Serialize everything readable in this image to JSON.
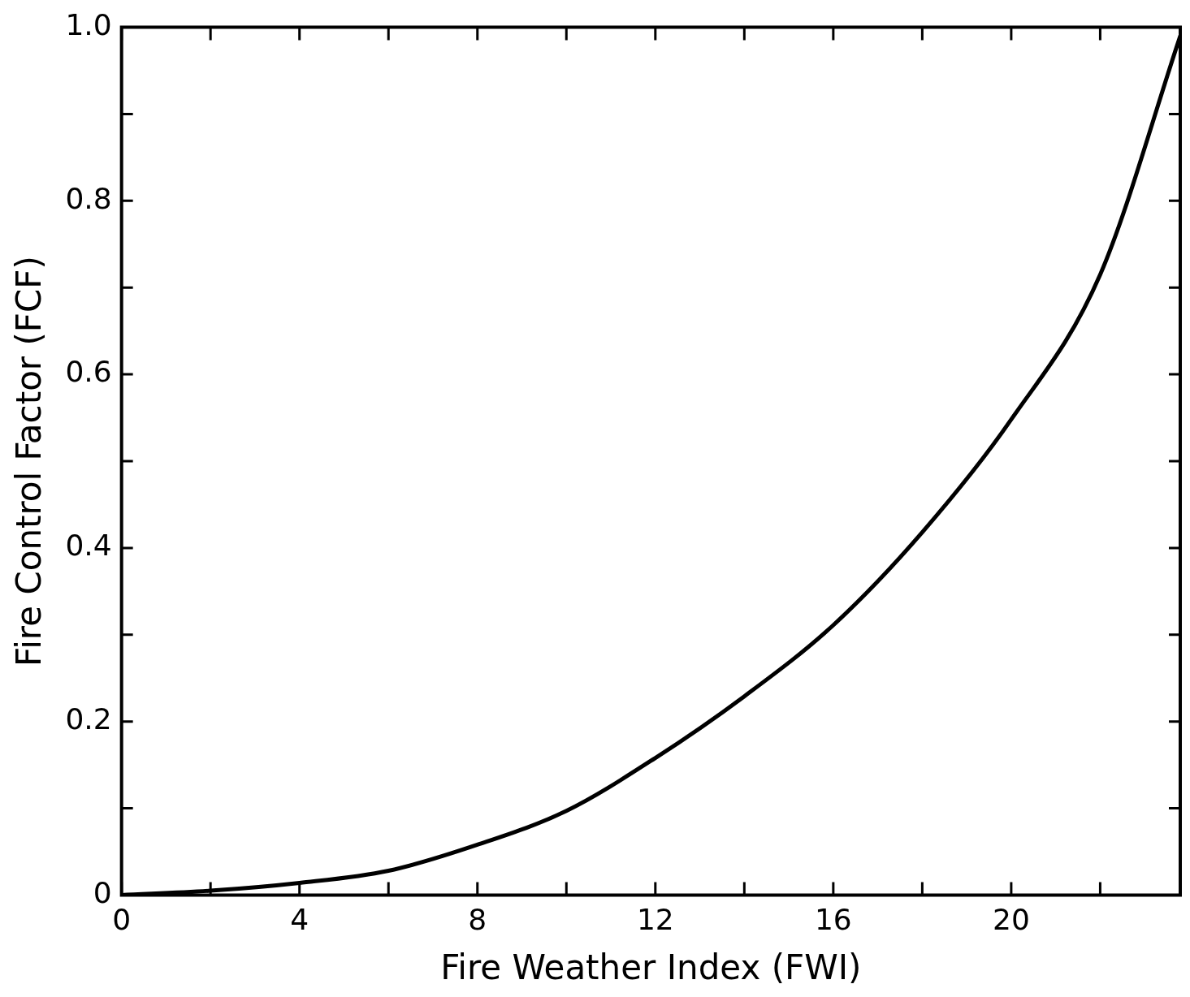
{
  "chart_data": {
    "type": "line",
    "xlabel": "Fire Weather Index (FWI)",
    "ylabel": "Fire Control Factor (FCF)",
    "x": [
      0,
      2,
      4,
      6,
      8,
      10,
      12,
      14,
      16,
      18,
      20,
      22,
      23.8
    ],
    "series": [
      {
        "color": "#000000",
        "values": [
          0,
          0.005,
          0.014,
          0.028,
          0.058,
          0.097,
          0.158,
          0.229,
          0.311,
          0.418,
          0.548,
          0.715,
          0.99
        ]
      }
    ],
    "xlim": [
      0,
      23.8
    ],
    "xticks": [
      0,
      {
        "value": 2,
        "label": null
      },
      4,
      {
        "value": 6,
        "label": null
      },
      8,
      {
        "value": 10,
        "label": null
      },
      12,
      {
        "value": 14,
        "label": null
      },
      16,
      {
        "value": 18,
        "label": null
      },
      20,
      {
        "value": 22,
        "label": null
      }
    ],
    "ylim": [
      0,
      1
    ],
    "yticks": [
      0,
      {
        "value": 0.1,
        "label": null
      },
      0.2,
      {
        "value": 0.3,
        "label": null
      },
      0.4,
      {
        "value": 0.5,
        "label": null
      },
      0.6,
      {
        "value": 0.7,
        "label": null
      },
      0.8,
      {
        "value": 0.9,
        "label": null
      },
      {
        "value": 1,
        "label": "1.0"
      }
    ],
    "grid": false,
    "legend": false,
    "marker": "none",
    "line_style": "solid"
  }
}
